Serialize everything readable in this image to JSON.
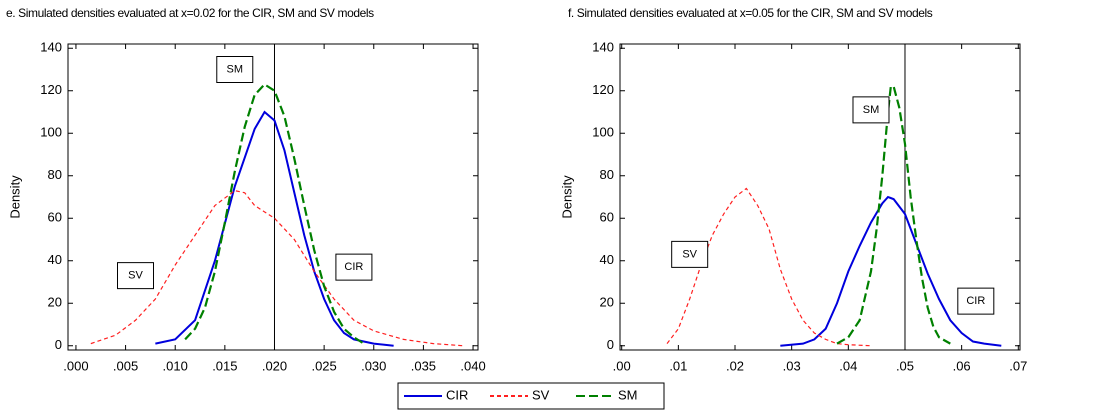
{
  "chart_data": [
    {
      "type": "line",
      "title": "e. Simulated densities evaluated at x=0.02 for the CIR, SM and SV models",
      "ylabel": "Density",
      "xlim": [
        -0.0008,
        0.0405
      ],
      "ylim": [
        -2,
        142
      ],
      "xticks": [
        {
          "value": 0,
          "label": ".000"
        },
        {
          "value": 0.005,
          "label": ".005"
        },
        {
          "value": 0.01,
          "label": ".010"
        },
        {
          "value": 0.015,
          "label": ".015"
        },
        {
          "value": 0.02,
          "label": ".020"
        },
        {
          "value": 0.025,
          "label": ".025"
        },
        {
          "value": 0.03,
          "label": ".030"
        },
        {
          "value": 0.035,
          "label": ".035"
        },
        {
          "value": 0.04,
          "label": ".040"
        }
      ],
      "yticks": [
        0,
        20,
        40,
        60,
        80,
        100,
        120,
        140
      ],
      "vline": 0.02,
      "series": [
        {
          "name": "CIR",
          "color": "#0000dd",
          "dash": "none",
          "x": [
            0.008,
            0.01,
            0.012,
            0.014,
            0.016,
            0.018,
            0.019,
            0.02,
            0.021,
            0.022,
            0.023,
            0.024,
            0.025,
            0.026,
            0.027,
            0.028,
            0.03,
            0.032
          ],
          "values": [
            1,
            3,
            12,
            40,
            75,
            102,
            110,
            106,
            92,
            72,
            52,
            35,
            22,
            12,
            6,
            3,
            1,
            0
          ]
        },
        {
          "name": "SV",
          "color": "#ff2020",
          "dash": "4 3",
          "x": [
            0.0015,
            0.004,
            0.006,
            0.008,
            0.01,
            0.012,
            0.014,
            0.016,
            0.017,
            0.018,
            0.02,
            0.022,
            0.024,
            0.026,
            0.028,
            0.03,
            0.033,
            0.036,
            0.039
          ],
          "values": [
            1,
            5,
            12,
            22,
            38,
            52,
            66,
            73,
            72,
            66,
            60,
            50,
            35,
            22,
            12,
            7,
            3,
            1,
            0
          ]
        },
        {
          "name": "SM",
          "color": "#008000",
          "dash": "9 4",
          "x": [
            0.011,
            0.012,
            0.013,
            0.014,
            0.015,
            0.016,
            0.017,
            0.018,
            0.019,
            0.02,
            0.021,
            0.022,
            0.023,
            0.024,
            0.025,
            0.026,
            0.027,
            0.028,
            0.029
          ],
          "values": [
            3,
            8,
            18,
            35,
            58,
            82,
            103,
            118,
            123,
            120,
            108,
            88,
            66,
            45,
            28,
            16,
            8,
            4,
            1
          ]
        }
      ],
      "annotations": [
        {
          "text": "SM",
          "x": 0.016,
          "y": 130
        },
        {
          "text": "SV",
          "x": 0.006,
          "y": 33
        },
        {
          "text": "CIR",
          "x": 0.028,
          "y": 37
        }
      ]
    },
    {
      "type": "line",
      "title": "f. Simulated densities evaluated at x=0.05 for the CIR, SM and SV models",
      "ylabel": "Density",
      "xlim": [
        -0.0003,
        0.0703
      ],
      "ylim": [
        -2,
        142
      ],
      "xticks": [
        {
          "value": 0,
          "label": ".00"
        },
        {
          "value": 0.01,
          "label": ".01"
        },
        {
          "value": 0.02,
          "label": ".02"
        },
        {
          "value": 0.03,
          "label": ".03"
        },
        {
          "value": 0.04,
          "label": ".04"
        },
        {
          "value": 0.05,
          "label": ".05"
        },
        {
          "value": 0.06,
          "label": ".06"
        },
        {
          "value": 0.07,
          "label": ".07"
        }
      ],
      "yticks": [
        0,
        20,
        40,
        60,
        80,
        100,
        120,
        140
      ],
      "vline": 0.05,
      "series": [
        {
          "color": "#0000dd",
          "dash": "none",
          "x": [
            0.028,
            0.032,
            0.034,
            0.036,
            0.038,
            0.04,
            0.042,
            0.044,
            0.046,
            0.047,
            0.048,
            0.05,
            0.052,
            0.054,
            0.056,
            0.058,
            0.06,
            0.062,
            0.064,
            0.067
          ],
          "values": [
            0,
            1,
            3,
            8,
            20,
            35,
            47,
            58,
            67,
            70,
            69,
            62,
            48,
            34,
            22,
            12,
            6,
            2,
            1,
            0
          ]
        },
        {
          "color": "#ff2020",
          "dash": "4 3",
          "x": [
            0.008,
            0.01,
            0.012,
            0.014,
            0.016,
            0.018,
            0.02,
            0.022,
            0.024,
            0.026,
            0.028,
            0.03,
            0.032,
            0.034,
            0.036,
            0.038,
            0.04,
            0.044
          ],
          "values": [
            1,
            8,
            22,
            38,
            52,
            62,
            70,
            74,
            66,
            55,
            36,
            22,
            12,
            6,
            3,
            1,
            0.5,
            0
          ]
        },
        {
          "color": "#008000",
          "dash": "9 4",
          "x": [
            0.038,
            0.04,
            0.042,
            0.044,
            0.045,
            0.046,
            0.047,
            0.0475,
            0.048,
            0.049,
            0.05,
            0.051,
            0.052,
            0.053,
            0.054,
            0.055,
            0.056,
            0.058
          ],
          "values": [
            1,
            4,
            12,
            35,
            55,
            80,
            110,
            122,
            122,
            112,
            95,
            70,
            50,
            32,
            18,
            9,
            4,
            1
          ]
        }
      ],
      "annotations": [
        {
          "text": "SV",
          "x": 0.012,
          "y": 43
        },
        {
          "text": "SM",
          "x": 0.044,
          "y": 111
        },
        {
          "text": "CIR",
          "x": 0.0625,
          "y": 21
        }
      ]
    }
  ]
}
